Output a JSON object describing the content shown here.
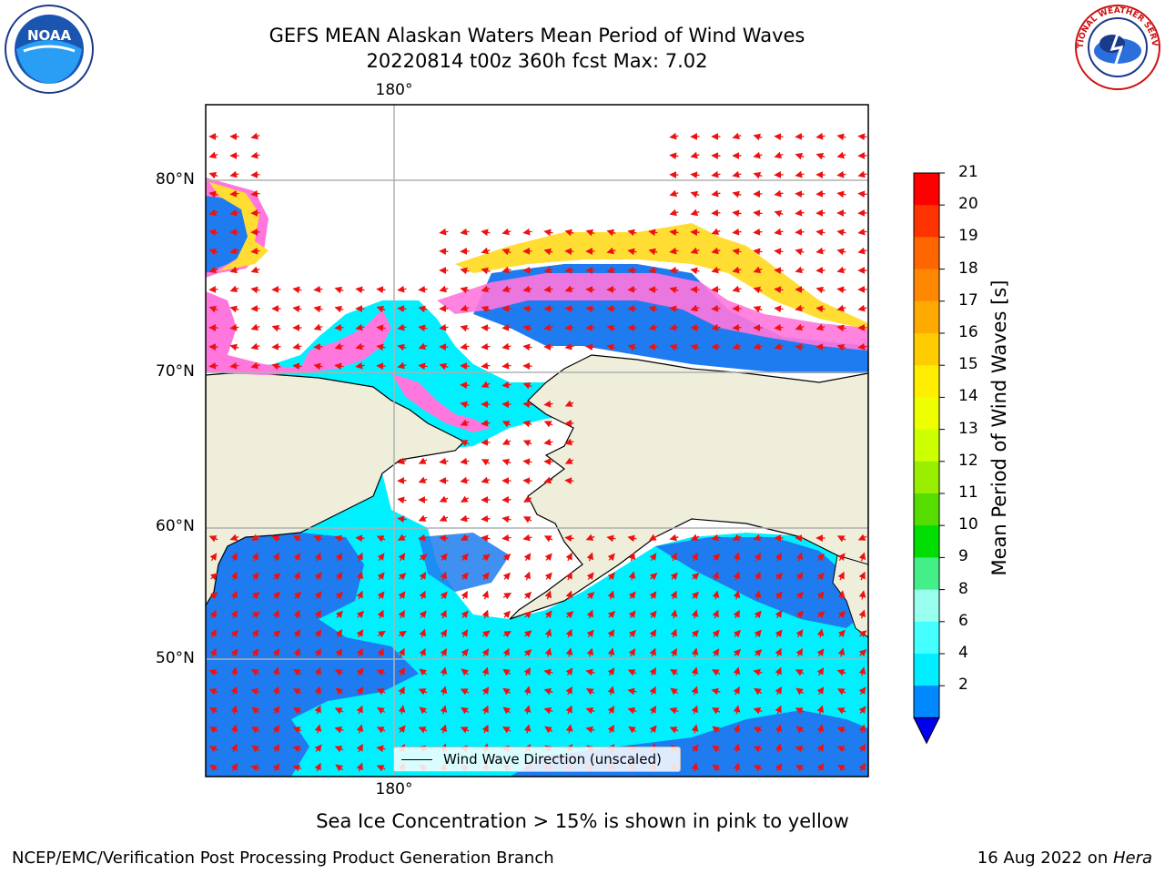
{
  "title": {
    "line1": "GEFS MEAN Alaskan Waters Mean Period of Wind Waves",
    "line2": "20220814 t00z 360h fcst   Max: 7.02"
  },
  "axes": {
    "lat_labels": [
      "80°N",
      "70°N",
      "60°N",
      "50°N"
    ],
    "lon_top": "180°",
    "lon_bottom": "180°"
  },
  "colorbar": {
    "label": "Mean Period of Wind Waves [s]",
    "ticks": [
      "21",
      "20",
      "19",
      "18",
      "17",
      "16",
      "15",
      "14",
      "13",
      "12",
      "11",
      "10",
      "9",
      "8",
      "6",
      "4",
      "2"
    ],
    "colors": [
      "#ff0000",
      "#ff3300",
      "#ff6600",
      "#ff8800",
      "#ffaa00",
      "#ffcc00",
      "#ffee00",
      "#eeff00",
      "#ccff00",
      "#99ee00",
      "#55dd00",
      "#00dd00",
      "#44ee88",
      "#99ffee",
      "#44ffff",
      "#00eeff",
      "#0088ff"
    ],
    "under_color": "#0000ee"
  },
  "legend": {
    "label": "Wind Wave Direction (unscaled)"
  },
  "note": "Sea Ice Concentration > 15% is shown in pink to yellow",
  "footer": {
    "left": "NCEP/EMC/Verification Post Processing Product Generation Branch",
    "right_date": "16 Aug 2022 on ",
    "right_machine": "Hera"
  },
  "logos": {
    "noaa_text": "NOAA",
    "nws_text": "NATIONAL WEATHER SERVICE"
  },
  "colors": {
    "land": "#efeedb",
    "ocean_low": "#1e7cf0",
    "ocean_mid": "#00f0ff",
    "arrow": "#ee1111",
    "grid": "#b0b0b0"
  }
}
